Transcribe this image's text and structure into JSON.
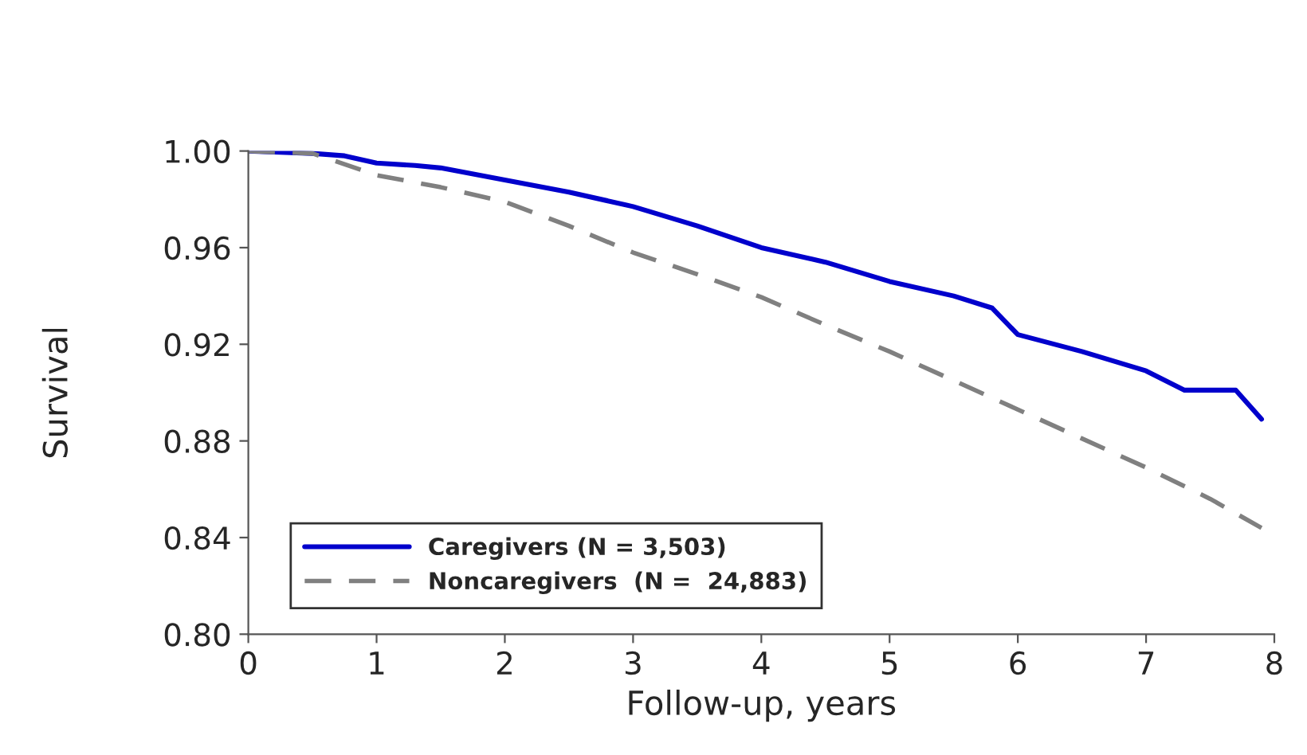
{
  "chart_data": {
    "type": "line",
    "xlabel": "Follow-up, years",
    "ylabel": "Survival",
    "xlim": [
      0,
      8
    ],
    "xticks": [
      0,
      1,
      2,
      3,
      4,
      5,
      6,
      7,
      8
    ],
    "ylim": [
      0.8,
      1.0
    ],
    "yticks": [
      {
        "value": 0.8,
        "label": "0.80"
      },
      {
        "value": 0.84,
        "label": "0.84"
      },
      {
        "value": 0.88,
        "label": "0.88"
      },
      {
        "value": 0.92,
        "label": "0.92"
      },
      {
        "value": 0.96,
        "label": "0.96"
      },
      {
        "value": 1.0,
        "label": "1.00"
      }
    ],
    "grid": false,
    "legend": "bottom left",
    "series": [
      {
        "name": "Caregivers (N = 3,503)",
        "color": "#0000cc",
        "line_style": "solid",
        "x": [
          0,
          0.5,
          0.75,
          1,
          1.3,
          1.5,
          2,
          2.5,
          3,
          3.5,
          4,
          4.5,
          5,
          5.5,
          5.8,
          6,
          6.5,
          7,
          7.3,
          7.7,
          7.9
        ],
        "values": [
          1.0,
          0.999,
          0.998,
          0.995,
          0.994,
          0.993,
          0.988,
          0.983,
          0.977,
          0.969,
          0.96,
          0.954,
          0.946,
          0.94,
          0.935,
          0.924,
          0.917,
          0.909,
          0.901,
          0.901,
          0.889
        ]
      },
      {
        "name": "Noncaregivers  (N =  24,883)",
        "color": "#808080",
        "line_style": "dashed",
        "x": [
          0,
          0.5,
          1,
          1.5,
          2,
          2.5,
          3,
          3.5,
          4,
          4.5,
          5,
          5.5,
          6,
          6.5,
          7,
          7.5,
          7.9
        ],
        "values": [
          1.0,
          0.999,
          0.99,
          0.985,
          0.979,
          0.969,
          0.958,
          0.949,
          0.9395,
          0.928,
          0.917,
          0.905,
          0.893,
          0.881,
          0.869,
          0.856,
          0.844
        ]
      }
    ]
  }
}
